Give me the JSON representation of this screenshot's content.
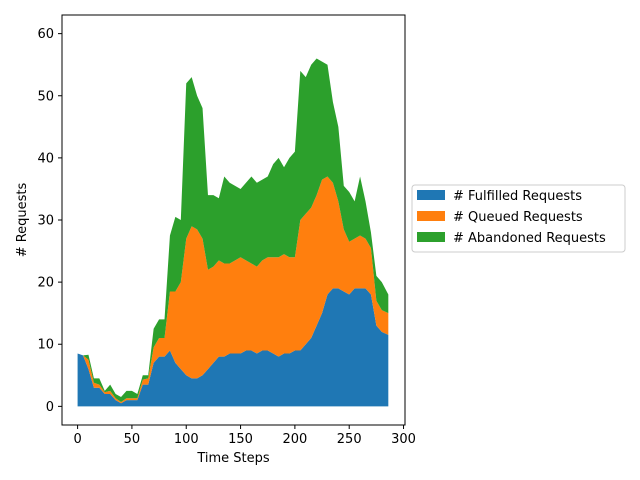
{
  "chart_data": {
    "type": "area",
    "stacked": true,
    "title": "",
    "xlabel": "Time Steps",
    "ylabel": "# Requests",
    "xlim": [
      -14.35,
      301.35
    ],
    "ylim": [
      -3.0,
      63.0
    ],
    "xticks": [
      0,
      50,
      100,
      150,
      200,
      250,
      300
    ],
    "yticks": [
      0,
      10,
      20,
      30,
      40,
      50,
      60
    ],
    "grid": false,
    "legend_position": "right",
    "series": [
      {
        "name": "# Fulfilled Requests",
        "color": "#1f77b4",
        "x": [
          0,
          5,
          10,
          15,
          20,
          25,
          30,
          35,
          40,
          45,
          50,
          55,
          60,
          65,
          70,
          75,
          80,
          85,
          90,
          95,
          100,
          105,
          110,
          115,
          120,
          125,
          130,
          135,
          140,
          145,
          150,
          155,
          160,
          165,
          170,
          175,
          180,
          185,
          190,
          195,
          200,
          205,
          210,
          215,
          220,
          225,
          230,
          235,
          240,
          245,
          250,
          255,
          260,
          265,
          270,
          275,
          280,
          286
        ],
        "values": [
          8.5,
          8.2,
          6.0,
          3.0,
          3.0,
          2.0,
          2.0,
          1.0,
          0.5,
          1.0,
          1.0,
          1.0,
          3.5,
          3.5,
          7.0,
          8.0,
          8.0,
          9.0,
          7.0,
          6.0,
          5.0,
          4.5,
          4.5,
          5.0,
          6.0,
          7.0,
          8.0,
          8.0,
          8.5,
          8.5,
          8.5,
          9.0,
          9.0,
          8.5,
          9.0,
          9.0,
          8.5,
          8.0,
          8.5,
          8.5,
          9.0,
          9.0,
          10.0,
          11.0,
          13.0,
          15.0,
          18.0,
          19.0,
          19.0,
          18.5,
          18.0,
          19.0,
          19.0,
          19.0,
          18.0,
          13.0,
          12.0,
          11.5
        ]
      },
      {
        "name": "# Queued Requests",
        "color": "#ff7f0e",
        "x": [
          0,
          5,
          10,
          15,
          20,
          25,
          30,
          35,
          40,
          45,
          50,
          55,
          60,
          65,
          70,
          75,
          80,
          85,
          90,
          95,
          100,
          105,
          110,
          115,
          120,
          125,
          130,
          135,
          140,
          145,
          150,
          155,
          160,
          165,
          170,
          175,
          180,
          185,
          190,
          195,
          200,
          205,
          210,
          215,
          220,
          225,
          230,
          235,
          240,
          245,
          250,
          255,
          260,
          265,
          270,
          275,
          280,
          286
        ],
        "values": [
          0.0,
          0.0,
          1.5,
          0.8,
          0.5,
          0.3,
          0.5,
          0.3,
          0.2,
          0.3,
          0.3,
          0.3,
          0.8,
          1.0,
          2.5,
          3.0,
          3.0,
          9.5,
          11.5,
          14.0,
          22.0,
          24.5,
          24.0,
          22.0,
          16.0,
          15.5,
          15.5,
          15.0,
          14.5,
          15.0,
          15.5,
          14.5,
          14.0,
          14.0,
          14.5,
          15.0,
          15.5,
          16.0,
          16.0,
          15.5,
          15.0,
          21.0,
          21.0,
          21.0,
          21.0,
          21.5,
          19.0,
          17.0,
          14.0,
          10.0,
          8.5,
          8.0,
          8.5,
          8.0,
          7.5,
          4.0,
          3.5,
          3.5
        ]
      },
      {
        "name": "# Abandoned Requests",
        "color": "#2ca02c",
        "x": [
          0,
          5,
          10,
          15,
          20,
          25,
          30,
          35,
          40,
          45,
          50,
          55,
          60,
          65,
          70,
          75,
          80,
          85,
          90,
          95,
          100,
          105,
          110,
          115,
          120,
          125,
          130,
          135,
          140,
          145,
          150,
          155,
          160,
          165,
          170,
          175,
          180,
          185,
          190,
          195,
          200,
          205,
          210,
          215,
          220,
          225,
          230,
          235,
          240,
          245,
          250,
          255,
          260,
          265,
          270,
          275,
          280,
          286
        ],
        "values": [
          0.0,
          0.0,
          0.8,
          0.7,
          1.0,
          0.2,
          1.0,
          0.7,
          0.8,
          1.2,
          1.2,
          0.7,
          0.7,
          0.5,
          3.0,
          3.0,
          3.0,
          9.0,
          12.0,
          10.0,
          25.0,
          24.0,
          21.5,
          21.0,
          12.0,
          11.5,
          10.0,
          14.0,
          13.0,
          12.0,
          11.0,
          12.5,
          14.0,
          13.5,
          13.0,
          13.0,
          15.0,
          16.0,
          14.0,
          16.0,
          17.0,
          24.0,
          22.0,
          23.0,
          22.0,
          19.0,
          18.0,
          13.0,
          12.0,
          7.0,
          8.0,
          6.0,
          9.5,
          6.0,
          2.5,
          4.0,
          4.5,
          3.0
        ]
      }
    ]
  }
}
